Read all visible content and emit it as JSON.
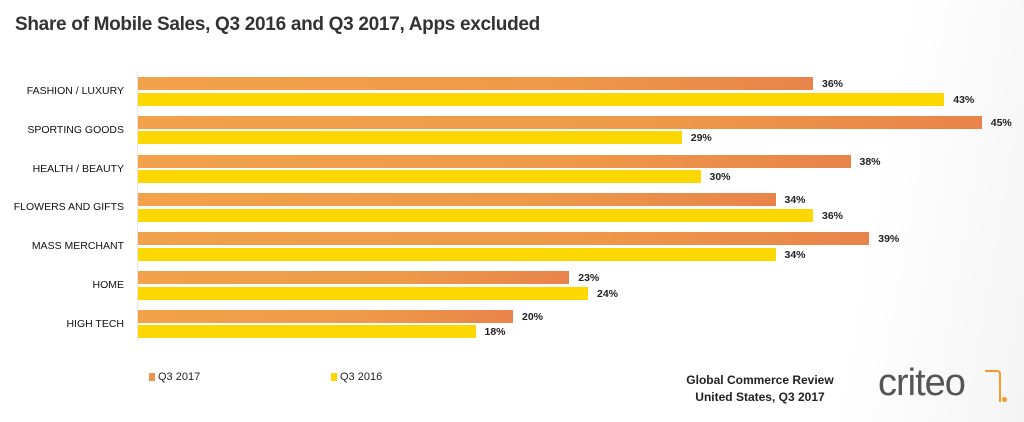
{
  "chart_data": {
    "type": "bar",
    "orientation": "horizontal",
    "title": "Share of Mobile Sales, Q3 2016 and Q3 2017, Apps excluded",
    "categories": [
      "Fashion / Luxury",
      "Sporting Goods",
      "Health / Beauty",
      "Flowers and Gifts",
      "Mass Merchant",
      "Home",
      "High Tech"
    ],
    "series": [
      {
        "name": "Q3 2017",
        "color": "#ee9448",
        "values": [
          36,
          45,
          38,
          34,
          39,
          23,
          20
        ]
      },
      {
        "name": "Q3 2016",
        "color": "#fcd800",
        "values": [
          43,
          29,
          30,
          36,
          34,
          24,
          18
        ]
      }
    ],
    "value_suffix": "%",
    "xlim": [
      0,
      45
    ],
    "grid": false,
    "legend": "bottom-left"
  },
  "source": {
    "line1": "Global Commerce Review",
    "line2": "United States, Q3 2017"
  },
  "logo": {
    "text": "criteo"
  }
}
